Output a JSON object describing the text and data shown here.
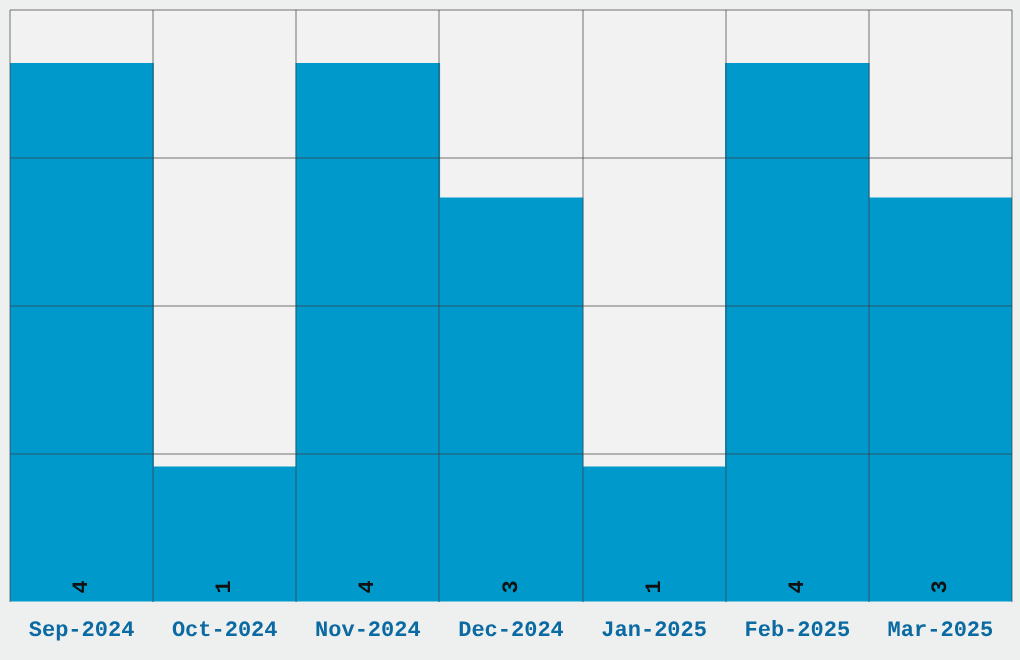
{
  "chart_data": {
    "type": "bar",
    "categories": [
      "Sep-2024",
      "Oct-2024",
      "Nov-2024",
      "Dec-2024",
      "Jan-2025",
      "Feb-2025",
      "Mar-2025"
    ],
    "values": [
      4,
      1,
      4,
      3,
      1,
      4,
      3
    ],
    "color": "#0099cc",
    "ylim": [
      0,
      4.4
    ],
    "yticks": [
      {
        "value": 1.1,
        "label": null
      },
      {
        "value": 2.2,
        "label": null
      },
      {
        "value": 3.3,
        "label": null
      },
      {
        "value": 4.4,
        "label": null
      }
    ],
    "tick_labels": "x",
    "grid": true,
    "data_labels": true
  }
}
